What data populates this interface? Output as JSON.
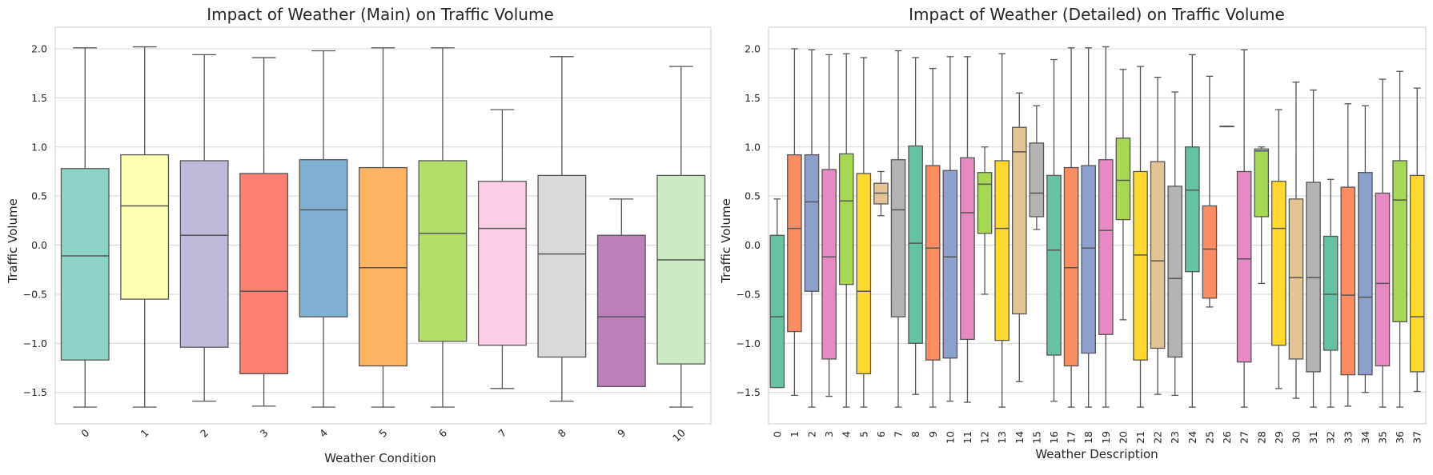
{
  "chart_data": [
    {
      "type": "box",
      "title": "Impact of Weather (Main) on Traffic Volume",
      "xlabel": "Weather Condition",
      "ylabel": "Traffic Volume",
      "ylim": [
        -1.82,
        2.22
      ],
      "yticks": [
        "2.0",
        "1.5",
        "1.0",
        "0.5",
        "0.0",
        "−0.5",
        "−1.0",
        "−1.5"
      ],
      "ytick_values": [
        2.0,
        1.5,
        1.0,
        0.5,
        0.0,
        -0.5,
        -1.0,
        -1.5
      ],
      "categories": [
        "0",
        "1",
        "2",
        "3",
        "4",
        "5",
        "6",
        "7",
        "8",
        "9",
        "10"
      ],
      "palette": [
        "#8dd3c7",
        "#ffffb3",
        "#bebada",
        "#fb8072",
        "#80b1d3",
        "#fdb462",
        "#b3de69",
        "#fccde5",
        "#d9d9d9",
        "#bc80bd",
        "#ccebc5"
      ],
      "boxes": [
        {
          "whislo": -1.65,
          "q1": -1.17,
          "med": -0.11,
          "q3": 0.78,
          "whishi": 2.01
        },
        {
          "whislo": -1.65,
          "q1": -0.55,
          "med": 0.4,
          "q3": 0.92,
          "whishi": 2.02
        },
        {
          "whislo": -1.59,
          "q1": -1.04,
          "med": 0.1,
          "q3": 0.86,
          "whishi": 1.94
        },
        {
          "whislo": -1.64,
          "q1": -1.31,
          "med": -0.47,
          "q3": 0.73,
          "whishi": 1.91
        },
        {
          "whislo": -1.65,
          "q1": -0.73,
          "med": 0.36,
          "q3": 0.87,
          "whishi": 1.98
        },
        {
          "whislo": -1.65,
          "q1": -1.23,
          "med": -0.23,
          "q3": 0.79,
          "whishi": 2.01
        },
        {
          "whislo": -1.65,
          "q1": -0.98,
          "med": 0.12,
          "q3": 0.86,
          "whishi": 2.01
        },
        {
          "whislo": -1.46,
          "q1": -1.02,
          "med": 0.17,
          "q3": 0.65,
          "whishi": 1.38
        },
        {
          "whislo": -1.59,
          "q1": -1.14,
          "med": -0.09,
          "q3": 0.71,
          "whishi": 1.92
        },
        {
          "whislo": -1.44,
          "q1": -1.44,
          "med": -0.73,
          "q3": 0.1,
          "whishi": 0.47
        },
        {
          "whislo": -1.65,
          "q1": -1.21,
          "med": -0.15,
          "q3": 0.71,
          "whishi": 1.82
        }
      ]
    },
    {
      "type": "box",
      "title": "Impact of Weather (Detailed) on Traffic Volume",
      "xlabel": "Weather Description",
      "ylabel": "Traffic Volume",
      "ylim": [
        -1.82,
        2.22
      ],
      "yticks": [
        "2.0",
        "1.5",
        "1.0",
        "0.5",
        "0.0",
        "−0.5",
        "−1.0",
        "−1.5"
      ],
      "ytick_values": [
        2.0,
        1.5,
        1.0,
        0.5,
        0.0,
        -0.5,
        -1.0,
        -1.5
      ],
      "categories": [
        "0",
        "1",
        "2",
        "3",
        "4",
        "5",
        "6",
        "7",
        "8",
        "9",
        "10",
        "11",
        "12",
        "13",
        "14",
        "15",
        "16",
        "17",
        "18",
        "19",
        "20",
        "21",
        "22",
        "23",
        "24",
        "25",
        "26",
        "27",
        "28",
        "29",
        "30",
        "31",
        "32",
        "33",
        "34",
        "35",
        "36",
        "37"
      ],
      "palette": [
        "#66c2a5",
        "#fc8d62",
        "#8da0cb",
        "#e78ac3",
        "#a6d854",
        "#ffd92f",
        "#e5c494",
        "#b3b3b3"
      ],
      "boxes": [
        {
          "whislo": -1.45,
          "q1": -1.45,
          "med": -0.73,
          "q3": 0.1,
          "whishi": 0.47
        },
        {
          "whislo": -1.53,
          "q1": -0.88,
          "med": 0.17,
          "q3": 0.92,
          "whishi": 2.0
        },
        {
          "whislo": -1.65,
          "q1": -0.47,
          "med": 0.44,
          "q3": 0.92,
          "whishi": 1.99
        },
        {
          "whislo": -1.54,
          "q1": -1.16,
          "med": -0.12,
          "q3": 0.77,
          "whishi": 1.94
        },
        {
          "whislo": -1.65,
          "q1": -0.4,
          "med": 0.45,
          "q3": 0.93,
          "whishi": 1.95
        },
        {
          "whislo": -1.65,
          "q1": -1.31,
          "med": -0.47,
          "q3": 0.73,
          "whishi": 1.91
        },
        {
          "whislo": 0.3,
          "q1": 0.42,
          "med": 0.53,
          "q3": 0.63,
          "whishi": 0.75
        },
        {
          "whislo": -1.65,
          "q1": -0.73,
          "med": 0.36,
          "q3": 0.87,
          "whishi": 1.98
        },
        {
          "whislo": -1.52,
          "q1": -1.0,
          "med": 0.02,
          "q3": 1.01,
          "whishi": 1.91
        },
        {
          "whislo": -1.65,
          "q1": -1.17,
          "med": -0.03,
          "q3": 0.81,
          "whishi": 1.8
        },
        {
          "whislo": -1.59,
          "q1": -1.15,
          "med": -0.12,
          "q3": 0.76,
          "whishi": 1.92
        },
        {
          "whislo": -1.6,
          "q1": -0.96,
          "med": 0.33,
          "q3": 0.89,
          "whishi": 1.92
        },
        {
          "whislo": -0.5,
          "q1": 0.12,
          "med": 0.62,
          "q3": 0.74,
          "whishi": 1.0
        },
        {
          "whislo": -1.65,
          "q1": -0.97,
          "med": 0.17,
          "q3": 0.86,
          "whishi": 1.95
        },
        {
          "whislo": -1.39,
          "q1": -0.7,
          "med": 0.95,
          "q3": 1.2,
          "whishi": 1.55
        },
        {
          "whislo": 0.16,
          "q1": 0.29,
          "med": 0.53,
          "q3": 1.04,
          "whishi": 1.42
        },
        {
          "whislo": -1.59,
          "q1": -1.12,
          "med": -0.05,
          "q3": 0.71,
          "whishi": 1.89
        },
        {
          "whislo": -1.65,
          "q1": -1.23,
          "med": -0.23,
          "q3": 0.79,
          "whishi": 2.01
        },
        {
          "whislo": -1.65,
          "q1": -1.1,
          "med": -0.03,
          "q3": 0.81,
          "whishi": 2.01
        },
        {
          "whislo": -1.65,
          "q1": -0.91,
          "med": 0.15,
          "q3": 0.87,
          "whishi": 2.02
        },
        {
          "whislo": -0.76,
          "q1": 0.26,
          "med": 0.66,
          "q3": 1.09,
          "whishi": 1.79
        },
        {
          "whislo": -1.65,
          "q1": -1.17,
          "med": -0.1,
          "q3": 0.75,
          "whishi": 1.82
        },
        {
          "whislo": -1.52,
          "q1": -1.05,
          "med": -0.16,
          "q3": 0.85,
          "whishi": 1.71
        },
        {
          "whislo": -1.53,
          "q1": -1.14,
          "med": -0.34,
          "q3": 0.6,
          "whishi": 1.56
        },
        {
          "whislo": -1.65,
          "q1": -0.27,
          "med": 0.56,
          "q3": 1.0,
          "whishi": 1.94
        },
        {
          "whislo": -0.63,
          "q1": -0.54,
          "med": -0.04,
          "q3": 0.4,
          "whishi": 1.72
        },
        {
          "whislo": 1.21,
          "q1": 1.21,
          "med": 1.21,
          "q3": 1.21,
          "whishi": 1.21
        },
        {
          "whislo": -1.65,
          "q1": -1.19,
          "med": -0.14,
          "q3": 0.75,
          "whishi": 1.99
        },
        {
          "whislo": -0.39,
          "q1": 0.29,
          "med": 0.96,
          "q3": 0.98,
          "whishi": 1.0
        },
        {
          "whislo": -1.46,
          "q1": -1.02,
          "med": 0.17,
          "q3": 0.65,
          "whishi": 1.38
        },
        {
          "whislo": -1.56,
          "q1": -1.16,
          "med": -0.33,
          "q3": 0.47,
          "whishi": 1.66
        },
        {
          "whislo": -1.65,
          "q1": -1.29,
          "med": -0.33,
          "q3": 0.64,
          "whishi": 1.58
        },
        {
          "whislo": -1.65,
          "q1": -1.07,
          "med": -0.5,
          "q3": 0.09,
          "whishi": 0.67
        },
        {
          "whislo": -1.64,
          "q1": -1.32,
          "med": -0.51,
          "q3": 0.59,
          "whishi": 1.44
        },
        {
          "whislo": -1.5,
          "q1": -1.32,
          "med": -0.53,
          "q3": 0.74,
          "whishi": 1.42
        },
        {
          "whislo": -1.65,
          "q1": -1.23,
          "med": -0.39,
          "q3": 0.53,
          "whishi": 1.69
        },
        {
          "whislo": -1.65,
          "q1": -0.78,
          "med": 0.46,
          "q3": 0.86,
          "whishi": 1.77
        },
        {
          "whislo": -1.49,
          "q1": -1.29,
          "med": -0.73,
          "q3": 0.71,
          "whishi": 1.6
        }
      ]
    }
  ]
}
